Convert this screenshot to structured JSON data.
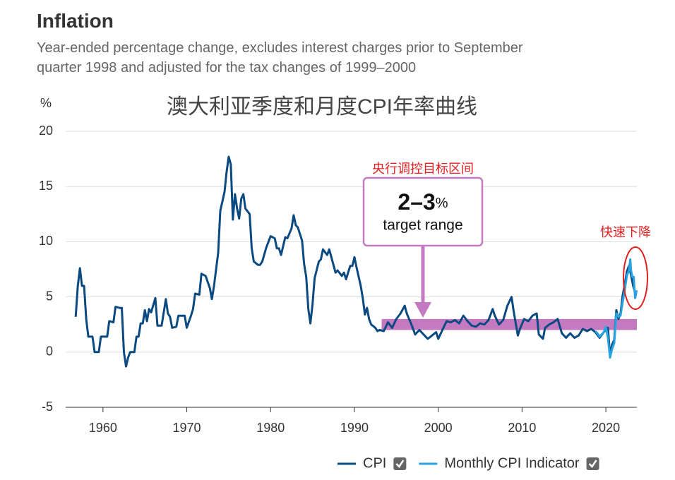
{
  "chart_data": {
    "type": "line",
    "page_title": "Inflation",
    "subtitle": "Year-ended percentage change, excludes interest charges prior to September quarter 1998 and adjusted for the tax changes of 1999–2000",
    "title": "澳大利亚季度和月度CPI年率曲线",
    "y_unit": "%",
    "xlim": [
      1955.55,
      2023.7
    ],
    "ylim": [
      -5,
      20
    ],
    "xticks": [
      1960,
      1970,
      1980,
      1990,
      2000,
      2010,
      2020
    ],
    "yticks": [
      -5,
      0,
      5,
      10,
      15,
      20
    ],
    "grid": true,
    "legend": "bottom-right",
    "target_band": {
      "low": 2,
      "high": 3,
      "start": 1993.25,
      "color": "#c47ac0"
    },
    "annotations": {
      "band_title": "央行调控目标区间",
      "range": "2–3",
      "range_unit": "%",
      "range_caption": "target range",
      "callout": "快速下降"
    },
    "series": [
      {
        "name": "CPI",
        "color": "#0b4a80",
        "x": [
          1956.75,
          1957.0,
          1957.25,
          1957.5,
          1957.75,
          1958.0,
          1958.25,
          1958.75,
          1959.0,
          1959.5,
          1959.75,
          1960.5,
          1960.75,
          1961.25,
          1961.5,
          1962.0,
          1962.25,
          1962.5,
          1962.75,
          1963.0,
          1963.25,
          1963.75,
          1964.0,
          1964.25,
          1964.5,
          1964.75,
          1965.0,
          1965.25,
          1965.5,
          1965.75,
          1966.25,
          1966.5,
          1967.0,
          1967.5,
          1967.75,
          1968.0,
          1968.25,
          1968.75,
          1969.0,
          1969.75,
          1970.0,
          1970.5,
          1970.75,
          1971.0,
          1971.5,
          1971.75,
          1972.25,
          1972.75,
          1973.0,
          1973.25,
          1973.75,
          1974.0,
          1974.5,
          1974.75,
          1975.0,
          1975.25,
          1975.5,
          1975.75,
          1976.0,
          1976.25,
          1976.5,
          1976.75,
          1977.0,
          1977.5,
          1977.75,
          1978.0,
          1978.5,
          1978.75,
          1979.0,
          1979.5,
          1979.75,
          1980.0,
          1980.5,
          1980.75,
          1981.0,
          1981.25,
          1981.5,
          1981.75,
          1982.0,
          1982.5,
          1982.75,
          1983.0,
          1983.25,
          1983.75,
          1984.0,
          1984.25,
          1984.5,
          1984.75,
          1985.0,
          1985.25,
          1985.75,
          1986.0,
          1986.25,
          1986.75,
          1987.0,
          1987.25,
          1987.75,
          1988.0,
          1988.5,
          1988.75,
          1989.0,
          1989.5,
          1989.75,
          1990.0,
          1990.25,
          1990.75,
          1991.0,
          1991.25,
          1991.5,
          1991.75,
          1992.0,
          1992.5,
          1992.75,
          1993.0,
          1993.5,
          1994.0,
          1994.5,
          1995.0,
          1995.5,
          1996.0,
          1996.25,
          1996.75,
          1997.25,
          1997.75,
          1998.25,
          1998.75,
          1999.25,
          1999.75,
          2000.0,
          2000.5,
          2001.0,
          2001.5,
          2002.0,
          2002.5,
          2003.0,
          2003.5,
          2004.0,
          2004.5,
          2005.0,
          2005.5,
          2006.0,
          2006.5,
          2006.75,
          2007.25,
          2007.75,
          2008.25,
          2008.75,
          2009.0,
          2009.5,
          2009.75,
          2010.25,
          2010.75,
          2011.25,
          2011.75,
          2012.0,
          2012.5,
          2012.75,
          2013.25,
          2013.75,
          2014.25,
          2014.75,
          2015.25,
          2015.75,
          2016.25,
          2016.75,
          2017.25,
          2017.75,
          2018.25,
          2018.75,
          2019.25,
          2019.75,
          2020.25,
          2020.5,
          2020.75,
          2021.0,
          2021.25,
          2021.5,
          2021.75,
          2022.0,
          2022.25,
          2022.5,
          2022.75,
          2023.0,
          2023.25,
          2023.5
        ],
        "values": [
          3.2,
          6.0,
          7.6,
          6.0,
          6.0,
          3.0,
          1.4,
          1.4,
          0,
          0,
          1.4,
          1.4,
          2.8,
          2.7,
          4.1,
          4.0,
          4.0,
          0.0,
          -1.3,
          -0.5,
          0,
          0,
          1.4,
          1.4,
          2.6,
          2.6,
          3.8,
          2.8,
          3.9,
          3.6,
          4.9,
          2.4,
          2.4,
          4.8,
          3.5,
          3.2,
          2.2,
          2.3,
          3.3,
          3.3,
          2.2,
          3.3,
          3.9,
          5.3,
          5.2,
          7.1,
          6.9,
          5.8,
          4.8,
          6.0,
          9.0,
          12.8,
          14.5,
          16.3,
          17.7,
          17.0,
          12.0,
          14.3,
          13.0,
          12.1,
          13.9,
          14.3,
          13.0,
          12.5,
          9.4,
          8.2,
          7.9,
          7.9,
          8.2,
          9.5,
          10.0,
          10.5,
          10.3,
          9.4,
          9.4,
          8.8,
          9.6,
          10.4,
          10.3,
          11.2,
          12.4,
          11.5,
          11.3,
          10.1,
          8.0,
          6.8,
          3.9,
          2.6,
          4.3,
          6.7,
          8.2,
          8.4,
          9.3,
          8.8,
          9.3,
          8.6,
          7.2,
          7.4,
          6.9,
          7.2,
          6.6,
          7.8,
          7.8,
          8.6,
          7.7,
          6.0,
          4.9,
          3.4,
          4.0,
          3.0,
          2.5,
          2.2,
          1.9,
          2.0,
          1.9,
          2.7,
          2.2,
          3.0,
          3.5,
          4.2,
          3.5,
          2.6,
          1.6,
          2.0,
          1.6,
          1.2,
          1.5,
          1.8,
          1.2,
          2.0,
          2.8,
          2.7,
          2.9,
          2.6,
          3.3,
          2.8,
          2.4,
          2.3,
          2.6,
          2.5,
          2.9,
          3.9,
          3.3,
          2.5,
          2.9,
          4.2,
          5.0,
          3.7,
          1.5,
          2.1,
          3.0,
          2.8,
          3.3,
          3.5,
          1.6,
          1.2,
          2.2,
          2.5,
          2.7,
          3.0,
          1.7,
          1.3,
          1.7,
          1.3,
          1.5,
          2.1,
          1.9,
          2.1,
          1.8,
          1.3,
          1.8,
          2.2,
          -0.3,
          0.7,
          1.1,
          3.8,
          3.0,
          3.5,
          5.1,
          6.1,
          7.3,
          7.8,
          7.0,
          6.0,
          5.4
        ]
      },
      {
        "name": "Monthly CPI Indicator",
        "color": "#29a3e0",
        "x": [
          2018.75,
          2019.0,
          2019.25,
          2019.5,
          2019.75,
          2020.0,
          2020.25,
          2020.5,
          2020.75,
          2021.0,
          2021.25,
          2021.5,
          2021.75,
          2022.0,
          2022.25,
          2022.5,
          2022.75,
          2022.92,
          2023.0,
          2023.17,
          2023.33,
          2023.42,
          2023.5,
          2023.58,
          2023.67
        ],
        "values": [
          1.9,
          1.7,
          1.4,
          1.6,
          1.8,
          2.3,
          1.3,
          -0.5,
          0.3,
          0.8,
          3.5,
          3.2,
          3.3,
          4.5,
          5.6,
          6.9,
          7.4,
          8.4,
          7.4,
          6.8,
          6.8,
          5.6,
          4.9,
          5.2,
          5.6
        ]
      }
    ]
  }
}
